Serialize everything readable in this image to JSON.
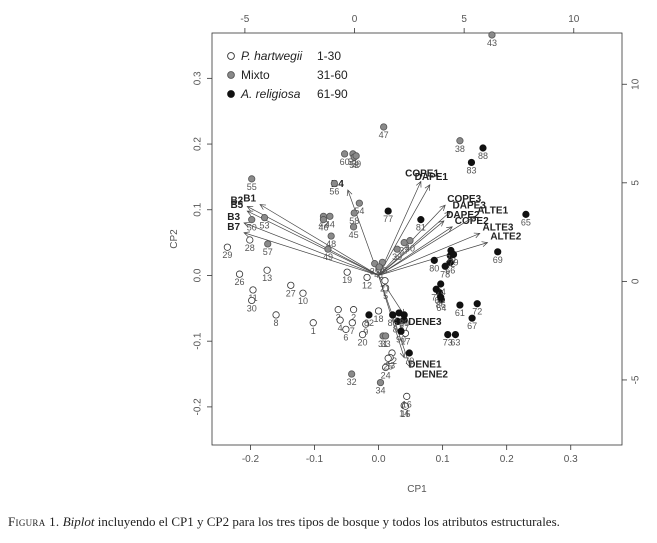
{
  "chart_data": {
    "type": "scatter",
    "title": "",
    "xlabel": "CP1",
    "ylabel": "CP2",
    "xlim": [
      -0.26,
      0.38
    ],
    "ylim": [
      -0.258,
      0.369
    ],
    "x_ticks": [
      -0.2,
      -0.1,
      0.0,
      0.1,
      0.2,
      0.3
    ],
    "y_ticks": [
      -0.2,
      -0.1,
      0.0,
      0.1,
      0.2,
      0.3
    ],
    "x_tick_labels": [
      "-0.2",
      "-0.1",
      "0.0",
      "0.1",
      "0.2",
      "0.3"
    ],
    "y_tick_labels": [
      "-0.2",
      "-0.1",
      "0.0",
      "0.1",
      "0.2",
      "0.3"
    ],
    "top_axis": {
      "ticks": [
        -5,
        0,
        5,
        10
      ],
      "labels": [
        "-5",
        "0",
        "5",
        "10"
      ],
      "lim": [
        -6.5,
        12.2
      ]
    },
    "right_axis": {
      "ticks": [
        -5,
        0,
        5,
        10
      ],
      "labels": [
        "-5",
        "0",
        "5",
        "10"
      ],
      "lim": [
        -8.3,
        12.6
      ]
    },
    "legend": {
      "position": "top-left",
      "entries": [
        {
          "name": "P. hartwegii",
          "range": "1-30",
          "marker": "open"
        },
        {
          "name": "Mixto",
          "range": "31-60",
          "marker": "gray"
        },
        {
          "name": "A. religiosa",
          "range": "61-90",
          "marker": "black"
        }
      ]
    },
    "series": [
      {
        "name": "P. hartwegii",
        "marker": "open",
        "points": [
          {
            "x": -0.102,
            "y": -0.072,
            "label": "1"
          },
          {
            "x": -0.039,
            "y": -0.052,
            "label": "2"
          },
          {
            "x": -0.063,
            "y": -0.052,
            "label": "3"
          },
          {
            "x": -0.06,
            "y": -0.068,
            "label": "4"
          },
          {
            "x": 0.011,
            "y": -0.019,
            "label": "5"
          },
          {
            "x": -0.051,
            "y": -0.082,
            "label": "6"
          },
          {
            "x": -0.041,
            "y": -0.072,
            "label": "7"
          },
          {
            "x": -0.16,
            "y": -0.06,
            "label": "8"
          },
          {
            "x": -0.02,
            "y": -0.074,
            "label": "9"
          },
          {
            "x": -0.118,
            "y": -0.027,
            "label": "10"
          },
          {
            "x": -0.196,
            "y": -0.022,
            "label": "11"
          },
          {
            "x": -0.018,
            "y": -0.003,
            "label": "12"
          },
          {
            "x": -0.174,
            "y": 0.008,
            "label": "13"
          },
          {
            "x": 0.04,
            "y": -0.198,
            "label": "14"
          },
          {
            "x": 0.042,
            "y": -0.199,
            "label": "15"
          },
          {
            "x": 0.044,
            "y": -0.184,
            "label": "16"
          },
          {
            "x": 0.042,
            "y": -0.088,
            "label": "17"
          },
          {
            "x": 0.0,
            "y": -0.054,
            "label": "18"
          },
          {
            "x": -0.049,
            "y": 0.005,
            "label": "19"
          },
          {
            "x": -0.025,
            "y": -0.09,
            "label": "20"
          },
          {
            "x": 0.01,
            "y": -0.008,
            "label": "21"
          },
          {
            "x": 0.021,
            "y": -0.118,
            "label": "22"
          },
          {
            "x": 0.018,
            "y": -0.125,
            "label": "23"
          },
          {
            "x": 0.011,
            "y": -0.14,
            "label": "24"
          },
          {
            "x": 0.015,
            "y": -0.126,
            "label": "25"
          },
          {
            "x": -0.217,
            "y": 0.002,
            "label": "26"
          },
          {
            "x": -0.137,
            "y": -0.015,
            "label": "27"
          },
          {
            "x": -0.201,
            "y": 0.054,
            "label": "28"
          },
          {
            "x": -0.236,
            "y": 0.043,
            "label": "29"
          },
          {
            "x": -0.198,
            "y": -0.038,
            "label": "30"
          }
        ]
      },
      {
        "name": "Mixto",
        "marker": "gray",
        "points": [
          {
            "x": 0.007,
            "y": -0.092,
            "label": "31"
          },
          {
            "x": -0.042,
            "y": -0.15,
            "label": "32"
          },
          {
            "x": 0.011,
            "y": -0.092,
            "label": "33"
          },
          {
            "x": 0.003,
            "y": -0.163,
            "label": "34"
          },
          {
            "x": -0.006,
            "y": 0.018,
            "label": "35"
          },
          {
            "x": 0.006,
            "y": 0.02,
            "label": "36"
          },
          {
            "x": 0.04,
            "y": 0.05,
            "label": "37"
          },
          {
            "x": 0.127,
            "y": 0.205,
            "label": "38"
          },
          {
            "x": 0.029,
            "y": 0.04,
            "label": "39"
          },
          {
            "x": 0.049,
            "y": 0.053,
            "label": "40"
          },
          {
            "x": 0.001,
            "y": 0.013,
            "label": "41"
          },
          {
            "x": -0.086,
            "y": 0.09,
            "label": "42"
          },
          {
            "x": 0.177,
            "y": 0.366,
            "label": "43"
          },
          {
            "x": -0.076,
            "y": 0.09,
            "label": "44"
          },
          {
            "x": -0.039,
            "y": 0.074,
            "label": "45"
          },
          {
            "x": -0.086,
            "y": 0.085,
            "label": "46"
          },
          {
            "x": 0.008,
            "y": 0.226,
            "label": "47"
          },
          {
            "x": -0.074,
            "y": 0.06,
            "label": "48"
          },
          {
            "x": -0.079,
            "y": 0.04,
            "label": "49"
          },
          {
            "x": -0.198,
            "y": 0.085,
            "label": "50"
          },
          {
            "x": -0.04,
            "y": 0.185,
            "label": "51"
          },
          {
            "x": -0.038,
            "y": 0.18,
            "label": "52"
          },
          {
            "x": -0.178,
            "y": 0.088,
            "label": "53"
          },
          {
            "x": -0.03,
            "y": 0.11,
            "label": "54"
          },
          {
            "x": -0.198,
            "y": 0.147,
            "label": "55"
          },
          {
            "x": -0.069,
            "y": 0.14,
            "label": "56"
          },
          {
            "x": -0.173,
            "y": 0.048,
            "label": "57"
          },
          {
            "x": -0.038,
            "y": 0.095,
            "label": "58"
          },
          {
            "x": -0.035,
            "y": 0.182,
            "label": "59"
          },
          {
            "x": -0.053,
            "y": 0.185,
            "label": "60"
          }
        ]
      },
      {
        "name": "A. religiosa",
        "marker": "black",
        "points": [
          {
            "x": 0.127,
            "y": -0.045,
            "label": "61"
          },
          {
            "x": 0.112,
            "y": 0.03,
            "label": "62"
          },
          {
            "x": 0.12,
            "y": -0.09,
            "label": "63"
          },
          {
            "x": 0.098,
            "y": -0.037,
            "label": "64"
          },
          {
            "x": 0.23,
            "y": 0.093,
            "label": "65"
          },
          {
            "x": 0.112,
            "y": 0.02,
            "label": "66"
          },
          {
            "x": 0.146,
            "y": -0.065,
            "label": "67"
          },
          {
            "x": 0.095,
            "y": -0.026,
            "label": "68"
          },
          {
            "x": 0.186,
            "y": 0.036,
            "label": "69"
          },
          {
            "x": 0.048,
            "y": -0.118,
            "label": "70"
          },
          {
            "x": 0.032,
            "y": -0.057,
            "label": "71"
          },
          {
            "x": 0.154,
            "y": -0.043,
            "label": "72"
          },
          {
            "x": 0.108,
            "y": -0.09,
            "label": "73"
          },
          {
            "x": 0.097,
            "y": -0.013,
            "label": "74"
          },
          {
            "x": 0.09,
            "y": -0.021,
            "label": "75"
          },
          {
            "x": 0.113,
            "y": 0.038,
            "label": "76"
          },
          {
            "x": 0.015,
            "y": 0.098,
            "label": "77"
          },
          {
            "x": 0.104,
            "y": 0.014,
            "label": "78"
          },
          {
            "x": 0.117,
            "y": 0.032,
            "label": "79"
          },
          {
            "x": 0.087,
            "y": 0.023,
            "label": "80"
          },
          {
            "x": 0.066,
            "y": 0.085,
            "label": "81"
          },
          {
            "x": -0.015,
            "y": -0.06,
            "label": "82"
          },
          {
            "x": 0.145,
            "y": 0.172,
            "label": "83"
          },
          {
            "x": 0.03,
            "y": -0.07,
            "label": "84"
          },
          {
            "x": 0.022,
            "y": -0.06,
            "label": "85"
          },
          {
            "x": 0.097,
            "y": -0.033,
            "label": "86"
          },
          {
            "x": 0.04,
            "y": -0.068,
            "label": "87"
          },
          {
            "x": 0.163,
            "y": 0.194,
            "label": "88"
          },
          {
            "x": 0.04,
            "y": -0.06,
            "label": "89"
          },
          {
            "x": 0.035,
            "y": -0.085,
            "label": "90"
          }
        ]
      }
    ],
    "vectors": [
      {
        "name": "COPE1",
        "x": 0.066,
        "y": 0.143
      },
      {
        "name": "DAPE1",
        "x": 0.08,
        "y": 0.138
      },
      {
        "name": "COPE3",
        "x": 0.104,
        "y": 0.107
      },
      {
        "name": "DAPE3",
        "x": 0.112,
        "y": 0.097
      },
      {
        "name": "DAPE2",
        "x": 0.102,
        "y": 0.083
      },
      {
        "name": "COPE2",
        "x": 0.115,
        "y": 0.074
      },
      {
        "name": "ALTE1",
        "x": 0.15,
        "y": 0.09
      },
      {
        "name": "ALTE3",
        "x": 0.158,
        "y": 0.064
      },
      {
        "name": "ALTE2",
        "x": 0.17,
        "y": 0.05
      },
      {
        "name": "B4",
        "x": -0.048,
        "y": 0.13
      },
      {
        "name": "B1",
        "x": -0.185,
        "y": 0.108
      },
      {
        "name": "B2",
        "x": -0.205,
        "y": 0.105
      },
      {
        "name": "B5",
        "x": -0.205,
        "y": 0.098
      },
      {
        "name": "B3",
        "x": -0.21,
        "y": 0.08
      },
      {
        "name": "B7",
        "x": -0.21,
        "y": 0.065
      },
      {
        "name": "DENE3",
        "x": 0.04,
        "y": -0.06
      },
      {
        "name": "DENE1",
        "x": 0.04,
        "y": -0.125
      },
      {
        "name": "DENE2",
        "x": 0.05,
        "y": -0.14
      }
    ]
  },
  "caption": {
    "figure": "Figura 1.",
    "italic": "Biplot",
    "text": " incluyendo el CP1 y CP2 para los tres tipos de bosque y todos los atributos estructurales."
  }
}
